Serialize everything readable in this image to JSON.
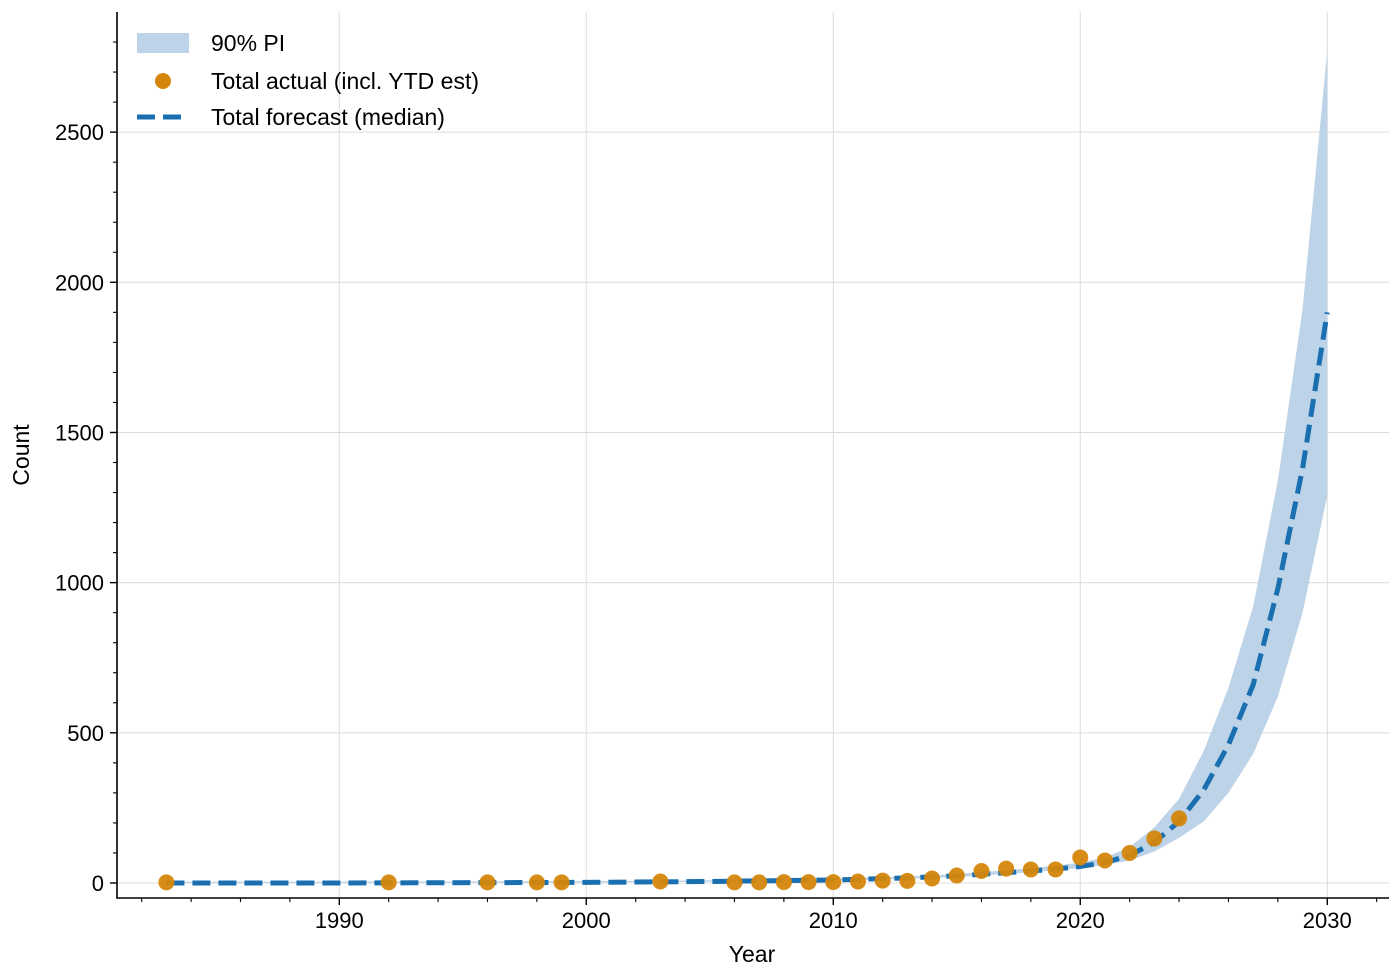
{
  "chart_data": {
    "type": "line",
    "title": "",
    "xlabel": "Year",
    "ylabel": "Count",
    "xlim": [
      1981,
      2032.5
    ],
    "ylim": [
      -50,
      2900
    ],
    "xticks": [
      1990,
      2000,
      2010,
      2020,
      2030
    ],
    "yticks": [
      0,
      500,
      1000,
      1500,
      2000,
      2500
    ],
    "xtick_labels": [
      "1990",
      "2000",
      "2010",
      "2020",
      "2030"
    ],
    "ytick_labels": [
      "0",
      "500",
      "1000",
      "1500",
      "2000",
      "2500"
    ],
    "grid": true,
    "legend_position": "top-left",
    "colors": {
      "band": "#bcd3e8",
      "actual": "#d4860b",
      "forecast": "#1a6fb0"
    },
    "series": [
      {
        "name": "90% PI",
        "kind": "band",
        "x": [
          1983,
          1990,
          2000,
          2005,
          2010,
          2013,
          2015,
          2017,
          2019,
          2020,
          2021,
          2022,
          2023,
          2024,
          2025,
          2026,
          2027,
          2028,
          2029,
          2030
        ],
        "lower": [
          0,
          0,
          2,
          4,
          8,
          14,
          20,
          30,
          42,
          50,
          60,
          75,
          105,
          150,
          205,
          300,
          430,
          620,
          900,
          1290
        ],
        "upper": [
          4,
          4,
          6,
          9,
          15,
          22,
          30,
          42,
          58,
          68,
          85,
          120,
          185,
          280,
          440,
          650,
          920,
          1340,
          1910,
          2770
        ]
      },
      {
        "name": "Total actual (incl. YTD est)",
        "kind": "scatter",
        "x": [
          1983,
          1992,
          1996,
          1998,
          1999,
          2003,
          2006,
          2007,
          2008,
          2009,
          2010,
          2011,
          2012,
          2013,
          2014,
          2015,
          2016,
          2017,
          2018,
          2019,
          2020,
          2021,
          2022,
          2023,
          2024
        ],
        "y": [
          2,
          2,
          2,
          2,
          2,
          5,
          2,
          2,
          3,
          3,
          3,
          5,
          8,
          7,
          15,
          25,
          40,
          48,
          45,
          45,
          85,
          75,
          100,
          148,
          215
        ]
      },
      {
        "name": "Total forecast (median)",
        "kind": "line",
        "x": [
          1983,
          1990,
          2000,
          2005,
          2010,
          2013,
          2015,
          2017,
          2019,
          2020,
          2021,
          2022,
          2023,
          2024,
          2025,
          2026,
          2027,
          2028,
          2029,
          2030
        ],
        "y": [
          0,
          0,
          2,
          5,
          10,
          17,
          24,
          34,
          46,
          55,
          68,
          92,
          135,
          205,
          310,
          460,
          660,
          980,
          1380,
          1900
        ]
      }
    ]
  }
}
